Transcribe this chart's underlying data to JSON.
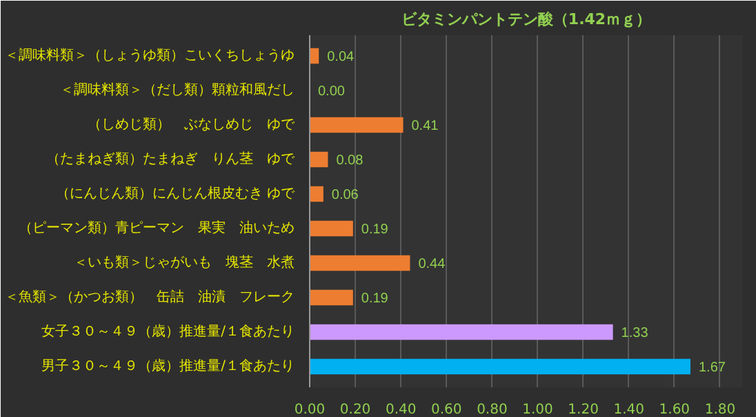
{
  "chart_data": {
    "type": "bar",
    "orientation": "horizontal",
    "title": "ビタミンパントテン酸（1.42ｍｇ）",
    "categories": [
      "＜調味料類＞（しょうゆ類）こいくちしょうゆ",
      "＜調味料類＞（だし類）顆粒和風だし",
      "（しめじ類）　ぶなしめじ　ゆで",
      "（たまねぎ類）たまねぎ　りん茎　ゆで",
      "（にんじん類）にんじん根皮むき ゆで",
      "（ピーマン類）青ピーマン　果実　油いため",
      "＜いも類＞じゃがいも　塊茎　水煮",
      "＜魚類＞（かつお類）　缶詰　油漬　フレーク",
      "女子３０～４９（歳）推進量/１食あたり",
      "男子３０～４９（歳）推進量/１食あたり"
    ],
    "values": [
      0.04,
      0.0,
      0.41,
      0.08,
      0.06,
      0.19,
      0.44,
      0.19,
      1.33,
      1.67
    ],
    "colors": [
      "#ed7d31",
      "#ed7d31",
      "#ed7d31",
      "#ed7d31",
      "#ed7d31",
      "#ed7d31",
      "#ed7d31",
      "#ed7d31",
      "#cc99ff",
      "#00b0f0"
    ],
    "value_labels": [
      "0.04",
      "0.00",
      "0.41",
      "0.08",
      "0.06",
      "0.19",
      "0.44",
      "0.19",
      "1.33",
      "1.67"
    ],
    "xlim": [
      0,
      1.9
    ],
    "xticks": [
      "0.00",
      "0.20",
      "0.40",
      "0.60",
      "0.80",
      "1.00",
      "1.20",
      "1.40",
      "1.60",
      "1.80"
    ],
    "grid": "x"
  }
}
